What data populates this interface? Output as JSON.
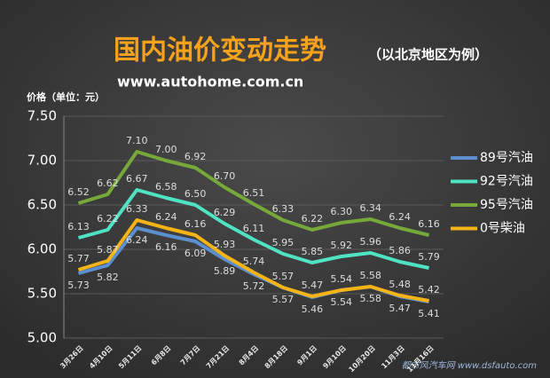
{
  "chart_data": {
    "type": "line",
    "title": "国内油价变动走势",
    "title_note": "（以北京地区为例）",
    "subtitle": "www.autohome.com.cn",
    "y_label": "价格（单位：元）",
    "watermark": "都市风汽车网 www.dsfauto.com",
    "categories": [
      "3月26日",
      "4月10日",
      "5月11日",
      "6月8日",
      "7月7日",
      "7月21日",
      "8月4日",
      "8月18日",
      "9月1日",
      "9月10日",
      "10月20日",
      "11月3日",
      "11月16日"
    ],
    "series": [
      {
        "name": "89号汽油",
        "color": "#5b8fd0",
        "label_pos": "below",
        "values": [
          5.73,
          5.82,
          6.24,
          6.16,
          6.09,
          5.89,
          5.72,
          5.57,
          5.46,
          5.54,
          5.58,
          5.47,
          5.41
        ],
        "value_labels": [
          "5.73",
          "5.82",
          "6.24",
          "6.16",
          "6.09",
          "5.89",
          "5.72",
          "5.57",
          "5.46",
          "5.54",
          "5.58",
          "5.47",
          "5.41"
        ]
      },
      {
        "name": "92号汽油",
        "color": "#4fe3c3",
        "label_pos": "above",
        "values": [
          6.13,
          6.22,
          6.67,
          6.58,
          6.5,
          6.29,
          6.11,
          5.95,
          5.85,
          5.92,
          5.96,
          5.86,
          5.79
        ],
        "value_labels": [
          "6.13",
          "6.22",
          "6.67",
          "6.58",
          "6.50",
          "6.29",
          "6.11",
          "5.95",
          "5.85",
          "5.92",
          "5.96",
          "5.86",
          "5.79"
        ]
      },
      {
        "name": "95号汽油",
        "color": "#76a83a",
        "label_pos": "above",
        "values": [
          6.52,
          6.62,
          7.1,
          7.0,
          6.92,
          6.7,
          6.51,
          6.33,
          6.22,
          6.3,
          6.34,
          6.24,
          6.16
        ],
        "value_labels": [
          "6.52",
          "6.62",
          "7.10",
          "7.00",
          "6.92",
          "6.70",
          "6.51",
          "6.33",
          "6.22",
          "6.30",
          "6.34",
          "6.24",
          "6.16"
        ]
      },
      {
        "name": "0号柴油",
        "color": "#f4b416",
        "label_pos": "above",
        "values": [
          5.77,
          5.87,
          6.33,
          6.24,
          6.16,
          5.93,
          5.74,
          5.57,
          5.47,
          5.54,
          5.58,
          5.48,
          5.42
        ],
        "value_labels": [
          "5.77",
          "5.87",
          "6.33",
          "6.24",
          "6.16",
          "5.93",
          "5.74",
          "5.57",
          "5.47",
          "5.54",
          "5.58",
          "5.48",
          "5.42"
        ]
      }
    ],
    "ylim": [
      5,
      7.5
    ],
    "yticks": [
      {
        "value": 5,
        "label": "5.00"
      },
      {
        "value": 5.5,
        "label": "5.50"
      },
      {
        "value": 6,
        "label": "6.00"
      },
      {
        "value": 6.5,
        "label": "6.50"
      },
      {
        "value": 7,
        "label": "7.00"
      },
      {
        "value": 7.5,
        "label": "7.50"
      }
    ],
    "grid": true,
    "legend": "right"
  }
}
